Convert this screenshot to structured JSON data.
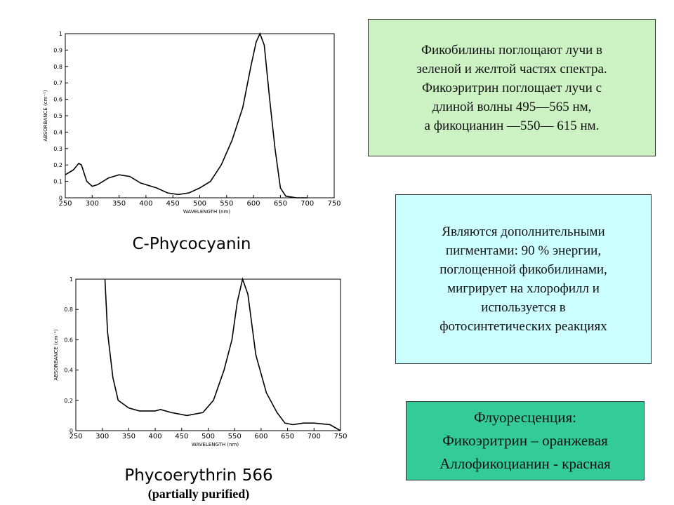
{
  "chart_data": [
    {
      "type": "line",
      "title": "C-Phycocyanin",
      "x_label": "WAVELENGTH (nm)",
      "y_label": "ABSORBANCE (cm⁻¹)",
      "color": "#000000",
      "x": [
        250,
        265,
        275,
        280,
        290,
        300,
        310,
        330,
        350,
        370,
        390,
        420,
        440,
        460,
        480,
        500,
        520,
        540,
        560,
        580,
        595,
        605,
        612,
        620,
        630,
        640,
        650,
        660,
        680,
        700
      ],
      "values": [
        0.14,
        0.17,
        0.21,
        0.2,
        0.1,
        0.07,
        0.08,
        0.12,
        0.14,
        0.13,
        0.09,
        0.06,
        0.03,
        0.02,
        0.03,
        0.06,
        0.1,
        0.2,
        0.35,
        0.55,
        0.8,
        0.95,
        1.0,
        0.93,
        0.6,
        0.3,
        0.06,
        0.01,
        0,
        0
      ],
      "xlim": [
        250,
        750
      ],
      "xticks": [
        250,
        300,
        350,
        400,
        450,
        500,
        550,
        600,
        650,
        700,
        750
      ],
      "ylim": [
        0,
        1
      ],
      "yticks": [
        0,
        0.1,
        0.2,
        0.3,
        0.4,
        0.5,
        0.6,
        0.7,
        0.8,
        0.9,
        1
      ]
    },
    {
      "type": "line",
      "title": "Phycoerythrin 566",
      "subtitle": "(partially purified)",
      "x_label": "WAVELENGTH (nm)",
      "y_label": "ABSORBANCE (cm⁻¹)",
      "color": "#000000",
      "x": [
        305,
        310,
        320,
        330,
        350,
        370,
        400,
        410,
        430,
        460,
        490,
        510,
        530,
        545,
        555,
        565,
        575,
        590,
        610,
        630,
        645,
        660,
        680,
        700,
        730,
        750
      ],
      "values": [
        1.0,
        0.65,
        0.35,
        0.2,
        0.15,
        0.13,
        0.13,
        0.14,
        0.12,
        0.1,
        0.12,
        0.2,
        0.4,
        0.6,
        0.85,
        1.0,
        0.9,
        0.5,
        0.25,
        0.12,
        0.05,
        0.04,
        0.05,
        0.05,
        0.04,
        0.0
      ],
      "xlim": [
        250,
        750
      ],
      "xticks": [
        250,
        300,
        350,
        400,
        450,
        500,
        550,
        600,
        650,
        700,
        750
      ],
      "ylim": [
        0,
        1
      ],
      "yticks": [
        0,
        0.2,
        0.4,
        0.6,
        0.8,
        1
      ]
    }
  ],
  "boxes": [
    {
      "lines": [
        "Фикобилины поглощают лучи в",
        "зеленой и желтой частях спектра.",
        "Фикоэритрин поглощает лучи с",
        "длиной волны 495—565 нм,",
        "а фикоцианин —550— 615 нм."
      ]
    },
    {
      "lines": [
        "Являются дополнительными",
        "пигментами: 90 % энергии,",
        "поглощенной фикобилинами,",
        "мигрирует на хлорофилл и",
        "используется в",
        "фотосинтетических реакциях"
      ]
    },
    {
      "lines": [
        "Флуоресценция:",
        "Фикоэритрин – оранжевая",
        "Аллофикоцианин - красная"
      ]
    }
  ]
}
